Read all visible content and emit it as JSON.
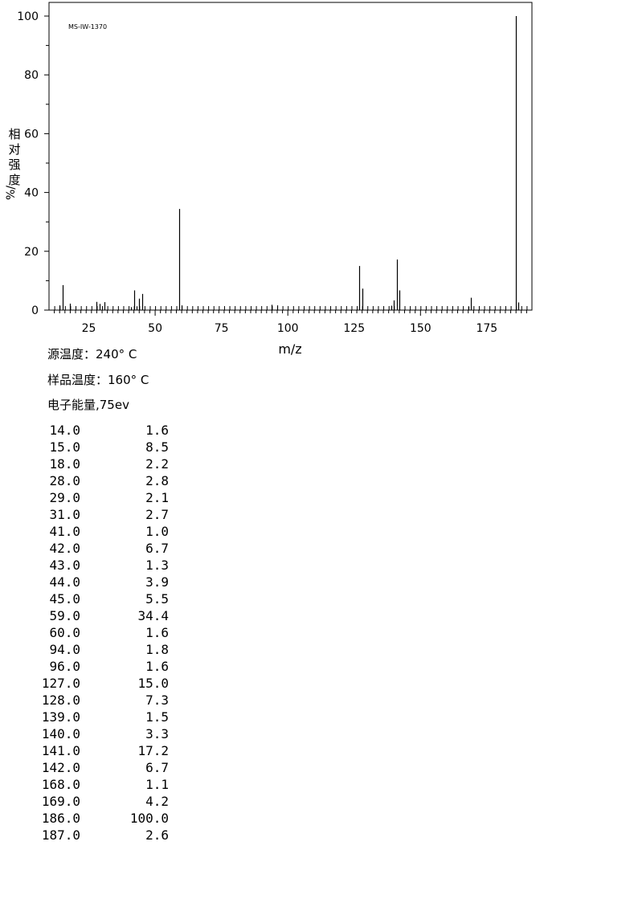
{
  "chart_data": {
    "type": "bar",
    "title": "MS-IW-1370",
    "xlabel": "m/z",
    "ylabel": "相对强度/%",
    "xlim": [
      10,
      192
    ],
    "ylim": [
      0,
      100
    ],
    "xticks": [
      25,
      50,
      75,
      100,
      125,
      150,
      175
    ],
    "yticks": [
      0,
      20,
      40,
      60,
      80,
      100
    ],
    "grid": false,
    "peaks": [
      {
        "mz": 14.0,
        "intensity": 1.6
      },
      {
        "mz": 15.0,
        "intensity": 8.5
      },
      {
        "mz": 18.0,
        "intensity": 2.2
      },
      {
        "mz": 28.0,
        "intensity": 2.8
      },
      {
        "mz": 29.0,
        "intensity": 2.1
      },
      {
        "mz": 31.0,
        "intensity": 2.7
      },
      {
        "mz": 41.0,
        "intensity": 1.0
      },
      {
        "mz": 42.0,
        "intensity": 6.7
      },
      {
        "mz": 43.0,
        "intensity": 1.3
      },
      {
        "mz": 44.0,
        "intensity": 3.9
      },
      {
        "mz": 45.0,
        "intensity": 5.5
      },
      {
        "mz": 59.0,
        "intensity": 34.4
      },
      {
        "mz": 60.0,
        "intensity": 1.6
      },
      {
        "mz": 94.0,
        "intensity": 1.8
      },
      {
        "mz": 96.0,
        "intensity": 1.6
      },
      {
        "mz": 127.0,
        "intensity": 15.0
      },
      {
        "mz": 128.0,
        "intensity": 7.3
      },
      {
        "mz": 139.0,
        "intensity": 1.5
      },
      {
        "mz": 140.0,
        "intensity": 3.3
      },
      {
        "mz": 141.0,
        "intensity": 17.2
      },
      {
        "mz": 142.0,
        "intensity": 6.7
      },
      {
        "mz": 168.0,
        "intensity": 1.1
      },
      {
        "mz": 169.0,
        "intensity": 4.2
      },
      {
        "mz": 186.0,
        "intensity": 100.0
      },
      {
        "mz": 187.0,
        "intensity": 2.6
      }
    ]
  },
  "info": {
    "source_temp": "源温度：240° C",
    "sample_temp": "样品温度：160° C",
    "electron_energy": "电子能量,75ev"
  },
  "table": [
    {
      "mz": "14.0",
      "intensity": "1.6"
    },
    {
      "mz": "15.0",
      "intensity": "8.5"
    },
    {
      "mz": "18.0",
      "intensity": "2.2"
    },
    {
      "mz": "28.0",
      "intensity": "2.8"
    },
    {
      "mz": "29.0",
      "intensity": "2.1"
    },
    {
      "mz": "31.0",
      "intensity": "2.7"
    },
    {
      "mz": "41.0",
      "intensity": "1.0"
    },
    {
      "mz": "42.0",
      "intensity": "6.7"
    },
    {
      "mz": "43.0",
      "intensity": "1.3"
    },
    {
      "mz": "44.0",
      "intensity": "3.9"
    },
    {
      "mz": "45.0",
      "intensity": "5.5"
    },
    {
      "mz": "59.0",
      "intensity": "34.4"
    },
    {
      "mz": "60.0",
      "intensity": "1.6"
    },
    {
      "mz": "94.0",
      "intensity": "1.8"
    },
    {
      "mz": "96.0",
      "intensity": "1.6"
    },
    {
      "mz": "127.0",
      "intensity": "15.0"
    },
    {
      "mz": "128.0",
      "intensity": "7.3"
    },
    {
      "mz": "139.0",
      "intensity": "1.5"
    },
    {
      "mz": "140.0",
      "intensity": "3.3"
    },
    {
      "mz": "141.0",
      "intensity": "17.2"
    },
    {
      "mz": "142.0",
      "intensity": "6.7"
    },
    {
      "mz": "168.0",
      "intensity": "1.1"
    },
    {
      "mz": "169.0",
      "intensity": "4.2"
    },
    {
      "mz": "186.0",
      "intensity": "100.0"
    },
    {
      "mz": "187.0",
      "intensity": "2.6"
    }
  ]
}
